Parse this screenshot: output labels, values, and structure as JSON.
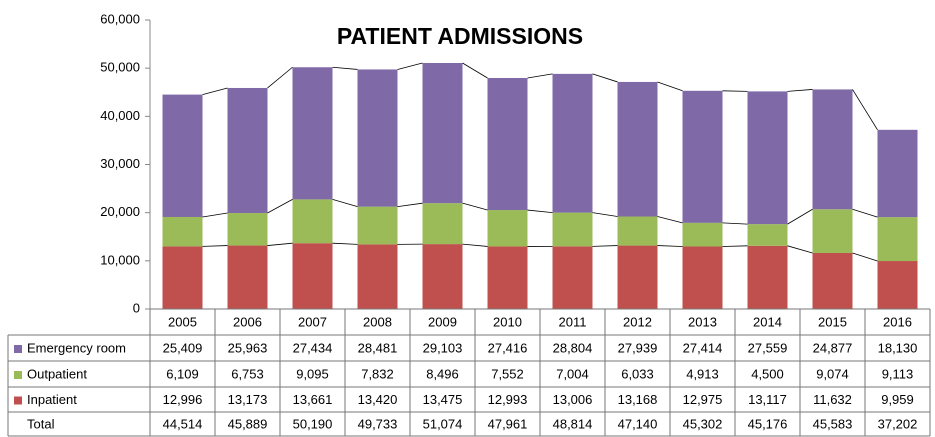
{
  "chart_data": {
    "type": "stacked_bar",
    "title": "PATIENT ADMISSIONS",
    "categories": [
      "2005",
      "2006",
      "2007",
      "2008",
      "2009",
      "2010",
      "2011",
      "2012",
      "2013",
      "2014",
      "2015",
      "2016"
    ],
    "series": [
      {
        "name": "Emergency room",
        "color": "#7f6aa7",
        "values": [
          25409,
          25963,
          27434,
          28481,
          29103,
          27416,
          28804,
          27939,
          27414,
          27559,
          24877,
          18130
        ],
        "value_labels": [
          "25,409",
          "25,963",
          "27,434",
          "28,481",
          "29,103",
          "27,416",
          "28,804",
          "27,939",
          "27,414",
          "27,559",
          "24,877",
          "18,130"
        ]
      },
      {
        "name": "Outpatient",
        "color": "#9bbb59",
        "values": [
          6109,
          6753,
          9095,
          7832,
          8496,
          7552,
          7004,
          6033,
          4913,
          4500,
          9074,
          9113
        ],
        "value_labels": [
          "6,109",
          "6,753",
          "9,095",
          "7,832",
          "8,496",
          "7,552",
          "7,004",
          "6,033",
          "4,913",
          "4,500",
          "9,074",
          "9,113"
        ]
      },
      {
        "name": "Inpatient",
        "color": "#c0504d",
        "values": [
          12996,
          13173,
          13661,
          13420,
          13475,
          12993,
          13006,
          13168,
          12975,
          13117,
          11632,
          9959
        ],
        "value_labels": [
          "12,996",
          "13,173",
          "13,661",
          "13,420",
          "13,475",
          "12,993",
          "13,006",
          "13,168",
          "12,975",
          "13,117",
          "11,632",
          "9,959"
        ]
      }
    ],
    "table_total": {
      "name": "Total",
      "cells": [
        "44,514",
        "45,889",
        "50,190",
        "49,733",
        "51,074",
        "47,961",
        "48,814",
        "47,140",
        "45,302",
        "45,176",
        "45,583",
        "37,202"
      ]
    },
    "ylim": [
      0,
      60000
    ],
    "yticks": [
      0,
      {
        "value": 10000,
        "label": "10,000"
      },
      {
        "value": 20000,
        "label": "20,000"
      },
      {
        "value": 30000,
        "label": "30,000"
      },
      {
        "value": 40000,
        "label": "40,000"
      },
      {
        "value": 50000,
        "label": "50,000"
      },
      {
        "value": 60000,
        "label": "60,000"
      }
    ],
    "grid": false
  }
}
